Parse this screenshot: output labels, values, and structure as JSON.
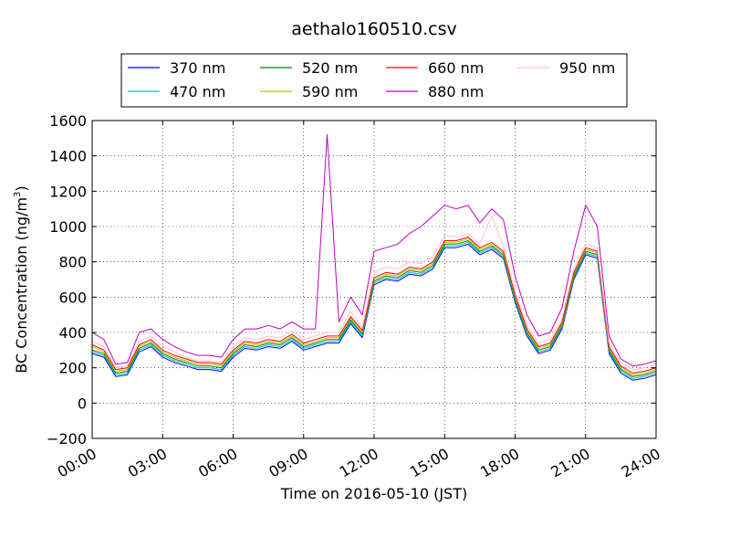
{
  "chart_data": {
    "type": "line",
    "title": "aethalo160510.csv",
    "xlabel": "Time on 2016-05-10 (JST)",
    "ylabel": "BC Concentration (ng/m",
    "ylabel_sup": "3",
    "ylabel_end": ")",
    "xlim": [
      0,
      24
    ],
    "ylim": [
      -200,
      1600
    ],
    "x_ticks": [
      {
        "value": 0,
        "label": "00:00"
      },
      {
        "value": 3,
        "label": "03:00"
      },
      {
        "value": 6,
        "label": "06:00"
      },
      {
        "value": 9,
        "label": "09:00"
      },
      {
        "value": 12,
        "label": "12:00"
      },
      {
        "value": 15,
        "label": "15:00"
      },
      {
        "value": 18,
        "label": "18:00"
      },
      {
        "value": 21,
        "label": "21:00"
      },
      {
        "value": 24,
        "label": "24:00"
      }
    ],
    "y_ticks": [
      {
        "value": -200,
        "label": "−200"
      },
      {
        "value": 0,
        "label": "0"
      },
      {
        "value": 200,
        "label": "200"
      },
      {
        "value": 400,
        "label": "400"
      },
      {
        "value": 600,
        "label": "600"
      },
      {
        "value": 800,
        "label": "800"
      },
      {
        "value": 1000,
        "label": "1000"
      },
      {
        "value": 1200,
        "label": "1200"
      },
      {
        "value": 1400,
        "label": "1400"
      },
      {
        "value": 1600,
        "label": "1600"
      }
    ],
    "grid": true,
    "legend_position": "top",
    "x": [
      0,
      0.5,
      1,
      1.5,
      2,
      2.5,
      3,
      3.5,
      4,
      4.5,
      5,
      5.5,
      6,
      6.5,
      7,
      7.5,
      8,
      8.5,
      9,
      9.5,
      10,
      10.5,
      11,
      11.5,
      12,
      12.5,
      13,
      13.5,
      14,
      14.5,
      15,
      15.5,
      16,
      16.5,
      17,
      17.5,
      18,
      18.5,
      19,
      19.5,
      20,
      20.5,
      21,
      21.5,
      22,
      22.5,
      23,
      23.5,
      24
    ],
    "series": [
      {
        "name": "370 nm",
        "color": "#0000ff",
        "values": [
          280,
          260,
          150,
          160,
          290,
          320,
          260,
          230,
          210,
          190,
          190,
          180,
          260,
          310,
          300,
          320,
          310,
          350,
          300,
          320,
          340,
          340,
          450,
          370,
          670,
          700,
          690,
          730,
          720,
          760,
          880,
          880,
          900,
          840,
          870,
          820,
          570,
          380,
          280,
          300,
          420,
          700,
          840,
          820,
          280,
          170,
          130,
          140,
          160
        ]
      },
      {
        "name": "470 nm",
        "color": "#00bfbf",
        "values": [
          290,
          270,
          160,
          170,
          300,
          330,
          270,
          240,
          220,
          200,
          200,
          190,
          270,
          320,
          310,
          330,
          320,
          360,
          310,
          330,
          350,
          350,
          460,
          380,
          680,
          710,
          700,
          740,
          730,
          770,
          890,
          890,
          910,
          850,
          880,
          830,
          580,
          390,
          290,
          310,
          430,
          710,
          850,
          830,
          290,
          180,
          140,
          150,
          170
        ]
      },
      {
        "name": "520 nm",
        "color": "#008000",
        "values": [
          300,
          280,
          170,
          180,
          310,
          340,
          280,
          250,
          230,
          210,
          210,
          200,
          280,
          330,
          320,
          340,
          330,
          370,
          320,
          340,
          360,
          360,
          470,
          390,
          690,
          720,
          710,
          750,
          740,
          780,
          900,
          900,
          920,
          860,
          890,
          840,
          590,
          400,
          300,
          320,
          440,
          720,
          860,
          840,
          300,
          190,
          150,
          160,
          180
        ]
      },
      {
        "name": "590 nm",
        "color": "#bfbf00",
        "values": [
          320,
          290,
          180,
          190,
          320,
          350,
          290,
          260,
          240,
          220,
          220,
          210,
          290,
          340,
          330,
          350,
          340,
          380,
          330,
          350,
          370,
          370,
          480,
          400,
          700,
          730,
          720,
          760,
          750,
          790,
          910,
          910,
          930,
          870,
          900,
          850,
          600,
          410,
          310,
          330,
          450,
          730,
          870,
          850,
          310,
          200,
          160,
          170,
          190
        ]
      },
      {
        "name": "660 nm",
        "color": "#ff0000",
        "values": [
          330,
          300,
          190,
          200,
          330,
          360,
          300,
          270,
          250,
          230,
          230,
          220,
          300,
          350,
          340,
          360,
          350,
          390,
          340,
          360,
          380,
          380,
          490,
          410,
          710,
          740,
          730,
          770,
          760,
          800,
          920,
          920,
          940,
          880,
          910,
          860,
          610,
          420,
          320,
          340,
          460,
          740,
          880,
          860,
          320,
          210,
          170,
          180,
          200
        ]
      },
      {
        "name": "880 nm",
        "color": "#bf00bf",
        "values": [
          400,
          360,
          220,
          230,
          400,
          420,
          360,
          320,
          290,
          270,
          270,
          260,
          360,
          420,
          420,
          440,
          420,
          460,
          420,
          420,
          1520,
          460,
          600,
          500,
          860,
          880,
          900,
          960,
          1000,
          1060,
          1120,
          1100,
          1120,
          1020,
          1100,
          1040,
          720,
          500,
          380,
          400,
          540,
          860,
          1120,
          1000,
          380,
          250,
          210,
          220,
          240
        ]
      },
      {
        "name": "950 nm",
        "color": "#ffc0cb",
        "values": [
          350,
          320,
          200,
          210,
          350,
          380,
          320,
          290,
          260,
          240,
          240,
          230,
          320,
          370,
          360,
          380,
          370,
          410,
          360,
          380,
          400,
          400,
          520,
          430,
          740,
          770,
          760,
          800,
          790,
          830,
          950,
          940,
          960,
          900,
          1060,
          890,
          630,
          440,
          340,
          360,
          480,
          760,
          900,
          880,
          340,
          230,
          190,
          200,
          220
        ]
      }
    ]
  }
}
